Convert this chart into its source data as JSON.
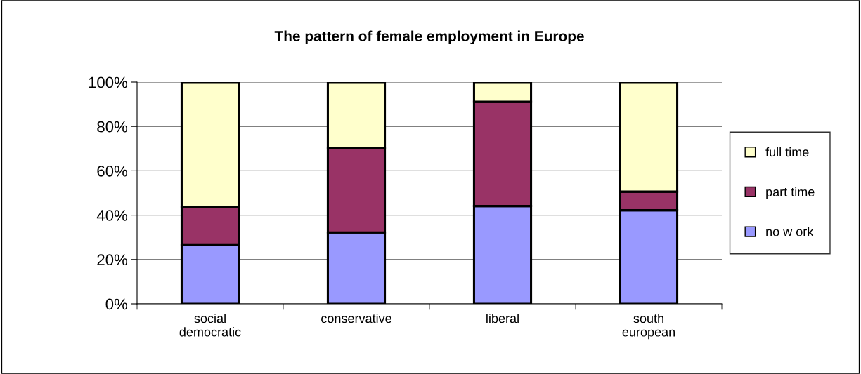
{
  "chart_data": {
    "type": "bar",
    "title": "The pattern of female employment in Europe",
    "categories": [
      "social\ndemocratic",
      "conservative",
      "liberal",
      "south\neuropean"
    ],
    "stacked": true,
    "series": [
      {
        "name": "no w ork",
        "color": "#9999ff",
        "values": [
          26.5,
          32.2,
          44.1,
          42.2
        ]
      },
      {
        "name": "part time",
        "color": "#993366",
        "values": [
          17.1,
          38.0,
          47.0,
          8.4
        ]
      },
      {
        "name": "full time",
        "color": "#ffffcc",
        "values": [
          56.4,
          29.8,
          8.9,
          49.4
        ]
      }
    ],
    "ylim": [
      0,
      100
    ],
    "yticks": [
      {
        "value": 0,
        "label": "0%"
      },
      {
        "value": 20,
        "label": "20%"
      },
      {
        "value": 40,
        "label": "40%"
      },
      {
        "value": 60,
        "label": "60%"
      },
      {
        "value": 80,
        "label": "80%"
      },
      {
        "value": 100,
        "label": "100%"
      }
    ],
    "grid": "y",
    "legend": "right"
  }
}
